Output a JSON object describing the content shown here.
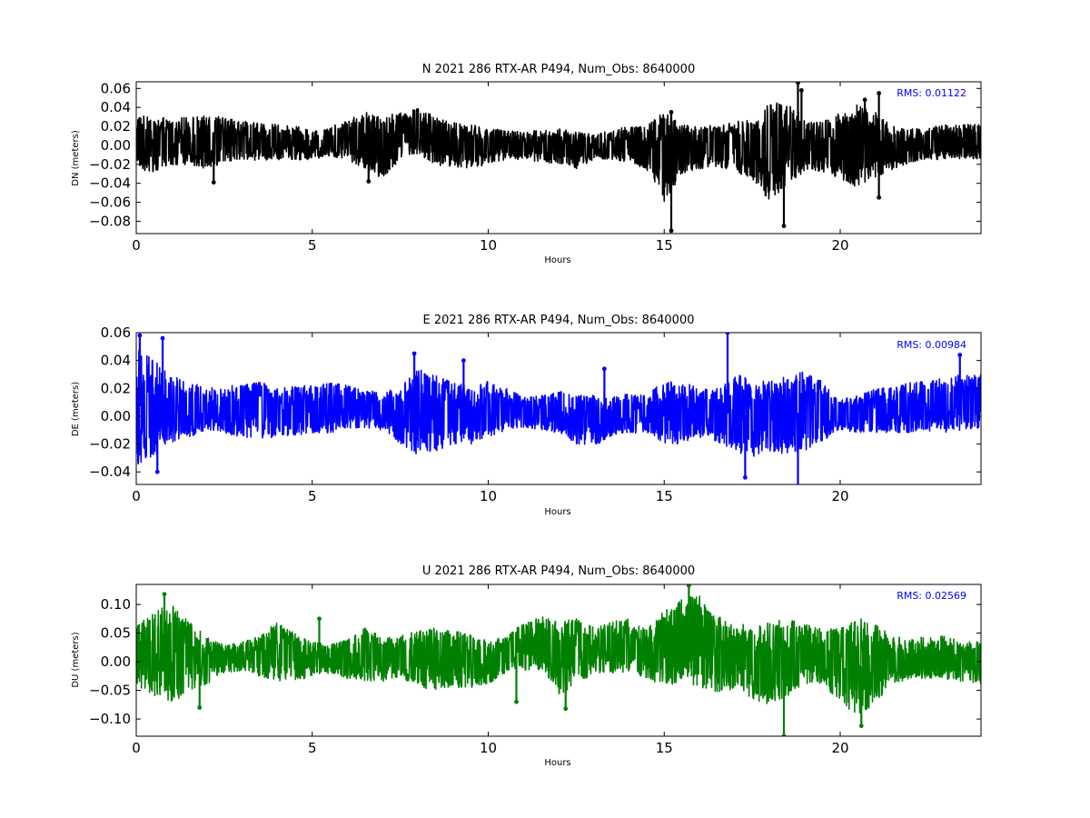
{
  "chart_data": [
    {
      "type": "line",
      "title": "N 2021 286 RTX-AR  P494, Num_Obs: 8640000",
      "xlabel": "Hours",
      "ylabel": "DN (meters)",
      "xlim": [
        0,
        24
      ],
      "ylim": [
        -0.093,
        0.067
      ],
      "xticks": [
        0,
        5,
        10,
        15,
        20
      ],
      "xtick_labels": [
        "0",
        "5",
        "10",
        "15",
        "20"
      ],
      "yticks": [
        -0.08,
        -0.06,
        -0.04,
        -0.02,
        0.0,
        0.02,
        0.04,
        0.06
      ],
      "ytick_labels": [
        "−0.08",
        "−0.06",
        "−0.04",
        "−0.02",
        "0.00",
        "0.02",
        "0.04",
        "0.06"
      ],
      "color": "#000000",
      "grid": false,
      "annotation": "RMS:  0.01122",
      "annotation_color": "#0000ff",
      "series": [
        {
          "envelope_x": [
            0,
            0.5,
            1,
            1.5,
            2,
            2.5,
            3,
            3.5,
            4,
            4.5,
            5,
            5.5,
            6,
            6.5,
            7,
            7.5,
            8,
            8.5,
            9,
            9.5,
            10,
            10.5,
            11,
            11.5,
            12,
            12.5,
            13,
            13.5,
            14,
            14.5,
            15,
            15.5,
            16,
            16.5,
            17,
            17.5,
            18,
            18.5,
            19,
            19.5,
            20,
            20.5,
            21,
            21.5,
            22,
            22.5,
            23,
            23.5,
            24
          ],
          "upper": [
            0.03,
            0.032,
            0.028,
            0.03,
            0.031,
            0.03,
            0.025,
            0.025,
            0.022,
            0.02,
            0.018,
            0.02,
            0.028,
            0.035,
            0.03,
            0.035,
            0.04,
            0.03,
            0.025,
            0.022,
            0.018,
            0.016,
            0.015,
            0.016,
            0.018,
            0.014,
            0.012,
            0.016,
            0.02,
            0.022,
            0.035,
            0.022,
            0.02,
            0.022,
            0.025,
            0.028,
            0.045,
            0.045,
            0.03,
            0.025,
            0.035,
            0.045,
            0.035,
            0.02,
            0.018,
            0.02,
            0.022,
            0.022,
            0.022
          ],
          "lower": [
            -0.025,
            -0.028,
            -0.022,
            -0.02,
            -0.025,
            -0.018,
            -0.015,
            -0.016,
            -0.015,
            -0.016,
            -0.015,
            -0.012,
            -0.015,
            -0.025,
            -0.035,
            -0.015,
            -0.01,
            -0.02,
            -0.025,
            -0.025,
            -0.02,
            -0.015,
            -0.015,
            -0.018,
            -0.02,
            -0.025,
            -0.015,
            -0.015,
            -0.018,
            -0.025,
            -0.06,
            -0.03,
            -0.025,
            -0.022,
            -0.028,
            -0.035,
            -0.06,
            -0.04,
            -0.03,
            -0.03,
            -0.035,
            -0.045,
            -0.035,
            -0.025,
            -0.018,
            -0.015,
            -0.015,
            -0.015,
            -0.015
          ]
        }
      ],
      "spikes": [
        [
          2.2,
          -0.039
        ],
        [
          6.6,
          -0.038
        ],
        [
          15.2,
          -0.09
        ],
        [
          15.2,
          0.035
        ],
        [
          18.4,
          -0.085
        ],
        [
          18.8,
          0.066
        ],
        [
          18.9,
          0.058
        ],
        [
          20.7,
          0.048
        ],
        [
          21.1,
          0.055
        ],
        [
          21.1,
          -0.055
        ]
      ]
    },
    {
      "type": "line",
      "title": "E 2021 286 RTX-AR  P494, Num_Obs: 8640000",
      "xlabel": "Hours",
      "ylabel": "DE (meters)",
      "xlim": [
        0,
        24
      ],
      "ylim": [
        -0.049,
        0.06
      ],
      "xticks": [
        0,
        5,
        10,
        15,
        20
      ],
      "xtick_labels": [
        "0",
        "5",
        "10",
        "15",
        "20"
      ],
      "yticks": [
        -0.04,
        -0.02,
        0.0,
        0.02,
        0.04,
        0.06
      ],
      "ytick_labels": [
        "−0.04",
        "−0.02",
        "0.00",
        "0.02",
        "0.04",
        "0.06"
      ],
      "color": "#0000ff",
      "grid": false,
      "annotation": "RMS:  0.00984",
      "annotation_color": "#0000ff",
      "series": [
        {
          "envelope_x": [
            0,
            0.5,
            1,
            1.5,
            2,
            2.5,
            3,
            3.5,
            4,
            4.5,
            5,
            5.5,
            6,
            6.5,
            7,
            7.5,
            8,
            8.5,
            9,
            9.5,
            10,
            10.5,
            11,
            11.5,
            12,
            12.5,
            13,
            13.5,
            14,
            14.5,
            15,
            15.5,
            16,
            16.5,
            17,
            17.5,
            18,
            18.5,
            19,
            19.5,
            20,
            20.5,
            21,
            21.5,
            22,
            22.5,
            23,
            23.5,
            24
          ],
          "upper": [
            0.05,
            0.04,
            0.03,
            0.025,
            0.02,
            0.022,
            0.022,
            0.025,
            0.02,
            0.022,
            0.022,
            0.025,
            0.022,
            0.018,
            0.018,
            0.02,
            0.035,
            0.03,
            0.025,
            0.022,
            0.025,
            0.02,
            0.014,
            0.015,
            0.018,
            0.016,
            0.015,
            0.014,
            0.016,
            0.016,
            0.025,
            0.025,
            0.02,
            0.02,
            0.03,
            0.028,
            0.025,
            0.03,
            0.032,
            0.025,
            0.012,
            0.015,
            0.02,
            0.022,
            0.025,
            0.025,
            0.028,
            0.03,
            0.03
          ],
          "lower": [
            -0.035,
            -0.03,
            -0.02,
            -0.015,
            -0.01,
            -0.012,
            -0.015,
            -0.016,
            -0.015,
            -0.014,
            -0.012,
            -0.012,
            -0.01,
            -0.008,
            -0.01,
            -0.02,
            -0.028,
            -0.025,
            -0.02,
            -0.02,
            -0.015,
            -0.01,
            -0.008,
            -0.01,
            -0.012,
            -0.02,
            -0.022,
            -0.015,
            -0.012,
            -0.012,
            -0.02,
            -0.02,
            -0.015,
            -0.018,
            -0.025,
            -0.03,
            -0.025,
            -0.028,
            -0.025,
            -0.018,
            -0.01,
            -0.012,
            -0.012,
            -0.012,
            -0.012,
            -0.012,
            -0.012,
            -0.01,
            -0.01
          ]
        }
      ],
      "spikes": [
        [
          0.1,
          0.058
        ],
        [
          0.75,
          0.056
        ],
        [
          7.9,
          0.045
        ],
        [
          9.3,
          0.04
        ],
        [
          13.3,
          0.034
        ],
        [
          16.8,
          0.06
        ],
        [
          17.3,
          -0.044
        ],
        [
          18.8,
          -0.05
        ],
        [
          23.4,
          0.044
        ],
        [
          0.6,
          -0.04
        ]
      ]
    },
    {
      "type": "line",
      "title": "U 2021 286 RTX-AR  P494, Num_Obs: 8640000",
      "xlabel": "Hours",
      "ylabel": "DU (meters)",
      "xlim": [
        0,
        24
      ],
      "ylim": [
        -0.13,
        0.135
      ],
      "xticks": [
        0,
        5,
        10,
        15,
        20
      ],
      "xtick_labels": [
        "0",
        "5",
        "10",
        "15",
        "20"
      ],
      "yticks": [
        -0.1,
        -0.05,
        0.0,
        0.05,
        0.1
      ],
      "ytick_labels": [
        "−0.10",
        "−0.05",
        "0.00",
        "0.05",
        "0.10"
      ],
      "color": "#008000",
      "grid": false,
      "annotation": "RMS:  0.02569",
      "annotation_color": "#0000ff",
      "series": [
        {
          "envelope_x": [
            0,
            0.5,
            1,
            1.5,
            2,
            2.5,
            3,
            3.5,
            4,
            4.5,
            5,
            5.5,
            6,
            6.5,
            7,
            7.5,
            8,
            8.5,
            9,
            9.5,
            10,
            10.5,
            11,
            11.5,
            12,
            12.5,
            13,
            13.5,
            14,
            14.5,
            15,
            15.5,
            16,
            16.5,
            17,
            17.5,
            18,
            18.5,
            19,
            19.5,
            20,
            20.5,
            21,
            21.5,
            22,
            22.5,
            23,
            23.5,
            24
          ],
          "upper": [
            0.06,
            0.09,
            0.1,
            0.07,
            0.045,
            0.03,
            0.035,
            0.045,
            0.07,
            0.05,
            0.035,
            0.03,
            0.04,
            0.06,
            0.045,
            0.045,
            0.055,
            0.06,
            0.055,
            0.05,
            0.035,
            0.045,
            0.07,
            0.08,
            0.07,
            0.075,
            0.06,
            0.07,
            0.075,
            0.06,
            0.09,
            0.11,
            0.12,
            0.08,
            0.07,
            0.06,
            0.07,
            0.075,
            0.065,
            0.06,
            0.06,
            0.08,
            0.065,
            0.045,
            0.04,
            0.045,
            0.045,
            0.035,
            0.035
          ],
          "lower": [
            -0.04,
            -0.06,
            -0.07,
            -0.055,
            -0.04,
            -0.02,
            -0.015,
            -0.025,
            -0.035,
            -0.035,
            -0.025,
            -0.02,
            -0.03,
            -0.035,
            -0.035,
            -0.03,
            -0.045,
            -0.05,
            -0.045,
            -0.045,
            -0.04,
            -0.02,
            -0.015,
            -0.015,
            -0.06,
            -0.04,
            -0.02,
            -0.02,
            -0.02,
            -0.03,
            -0.045,
            -0.035,
            -0.045,
            -0.055,
            -0.05,
            -0.065,
            -0.075,
            -0.06,
            -0.04,
            -0.04,
            -0.07,
            -0.1,
            -0.07,
            -0.04,
            -0.03,
            -0.03,
            -0.03,
            -0.035,
            -0.04
          ]
        }
      ],
      "spikes": [
        [
          0.8,
          0.118
        ],
        [
          15.7,
          0.133
        ],
        [
          18.4,
          -0.13
        ],
        [
          20.6,
          -0.112
        ],
        [
          12.2,
          -0.082
        ],
        [
          1.8,
          -0.08
        ],
        [
          5.2,
          0.075
        ],
        [
          10.8,
          -0.07
        ]
      ]
    }
  ]
}
